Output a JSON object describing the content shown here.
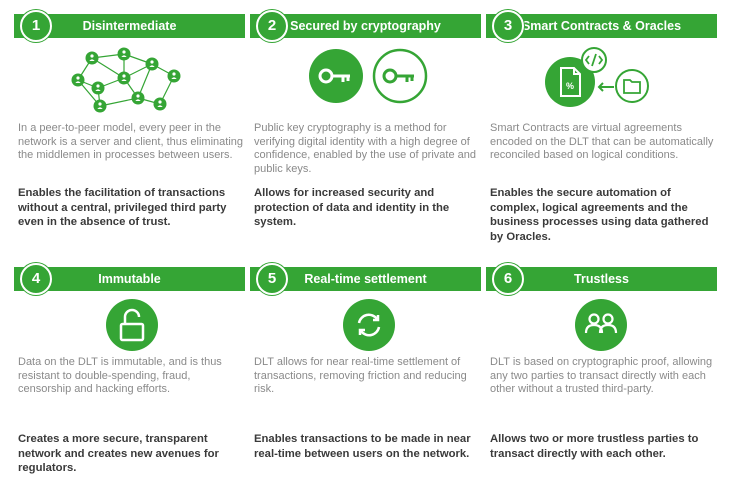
{
  "cards": [
    {
      "number": "1",
      "title": "Disintermediate",
      "description": "In a peer-to-peer model, every peer in the network is a server and client, thus eliminating the middlemen in processes between users.",
      "benefit": "Enables the facilitation of transactions without a central, privileged third party even in the absence of trust.",
      "icon": "peer-network-icon"
    },
    {
      "number": "2",
      "title": "Secured by cryptography",
      "description": "Public key cryptography is a method for verifying digital identity with a high degree of confidence, enabled by the use of private and public keys.",
      "benefit": "Allows for increased security and protection of data and identity in the system.",
      "icon": "key-icon"
    },
    {
      "number": "3",
      "title": "Smart Contracts & Oracles",
      "description": "Smart Contracts are virtual agreements encoded on the DLT that can be automatically reconciled based on logical conditions.",
      "benefit": "Enables the secure automation of complex, logical agreements and the business processes using data gathered by Oracles.",
      "icon": "smart-contract-icon"
    },
    {
      "number": "4",
      "title": "Immutable",
      "description": "Data on the DLT is immutable, and is thus resistant to double-spending, fraud, censorship and hacking efforts.",
      "benefit": "Creates a more secure, transparent network and creates new avenues for regulators.",
      "icon": "padlock-icon"
    },
    {
      "number": "5",
      "title": "Real-time settlement",
      "description": "DLT allows for near real-time settlement of transactions, removing friction and reducing risk.",
      "benefit": "Enables transactions to be made in near real-time between users on the network.",
      "icon": "refresh-icon"
    },
    {
      "number": "6",
      "title": "Trustless",
      "description": "DLT is based on cryptographic proof, allowing any two parties to transact directly with each other without a trusted third-party.",
      "benefit": "Allows two or more trustless parties to transact directly with each other.",
      "icon": "two-people-icon"
    }
  ],
  "colors": {
    "accent": "#35A535",
    "description_text": "#8a8a8a",
    "benefit_text": "#3a3a3a"
  }
}
